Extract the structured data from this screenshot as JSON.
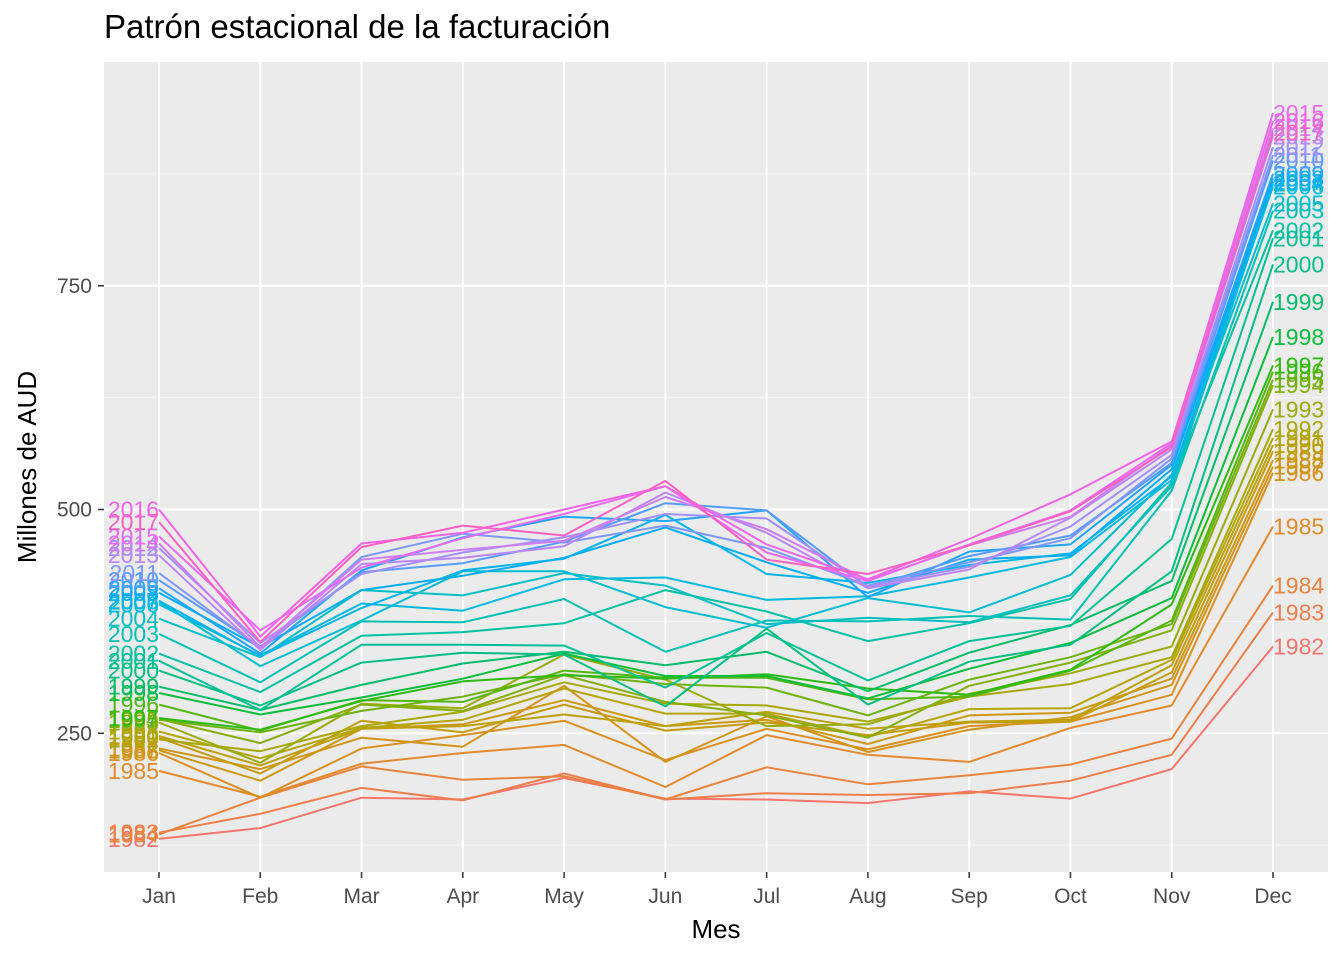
{
  "chart_data": {
    "type": "line",
    "title": "Patrón estacional de la facturación",
    "xlabel": "Mes",
    "ylabel": "Millones de AUD",
    "categories": [
      "Jan",
      "Feb",
      "Mar",
      "Apr",
      "May",
      "Jun",
      "Jul",
      "Aug",
      "Sep",
      "Oct",
      "Nov",
      "Dec"
    ],
    "y_ticks": [
      250,
      500,
      750
    ],
    "ylim": [
      95,
      1000
    ],
    "grid": true,
    "legend": "none",
    "end_labels": "year labels printed at the start (Jan) and end (Dec) of each line",
    "series": [
      {
        "name": "1982",
        "color": "#F8766D",
        "values": [
          132,
          144,
          178,
          176,
          200,
          177,
          176,
          172,
          185,
          177,
          210,
          347
        ]
      },
      {
        "name": "1983",
        "color": "#EE7E4B",
        "values": [
          139,
          160,
          189,
          175,
          205,
          176,
          183,
          181,
          183,
          197,
          226,
          385
        ]
      },
      {
        "name": "1984",
        "color": "#E9833E",
        "values": [
          137,
          178,
          213,
          198,
          202,
          176,
          212,
          193,
          203,
          215,
          244,
          415
        ]
      },
      {
        "name": "1985",
        "color": "#E28A2F",
        "values": [
          208,
          179,
          216,
          228,
          237,
          190,
          248,
          226,
          218,
          256,
          281,
          481
        ]
      },
      {
        "name": "1986",
        "color": "#DA9020",
        "values": [
          228,
          178,
          233,
          248,
          264,
          220,
          255,
          232,
          258,
          263,
          293,
          541
        ]
      },
      {
        "name": "1987",
        "color": "#D29418",
        "values": [
          233,
          210,
          245,
          235,
          303,
          218,
          269,
          229,
          254,
          268,
          304,
          548
        ]
      },
      {
        "name": "1988",
        "color": "#CC9810",
        "values": [
          231,
          197,
          255,
          260,
          287,
          258,
          265,
          238,
          270,
          273,
          311,
          555
        ]
      },
      {
        "name": "1989",
        "color": "#C49C0A",
        "values": [
          245,
          205,
          264,
          251,
          282,
          253,
          262,
          248,
          262,
          263,
          318,
          565
        ]
      },
      {
        "name": "1990",
        "color": "#BCA006",
        "values": [
          247,
          214,
          255,
          258,
          271,
          258,
          274,
          255,
          263,
          265,
          326,
          572
        ]
      },
      {
        "name": "1991",
        "color": "#B4A404",
        "values": [
          252,
          222,
          256,
          265,
          300,
          272,
          272,
          246,
          277,
          278,
          332,
          580
        ]
      },
      {
        "name": "1992",
        "color": "#A7A806",
        "values": [
          243,
          230,
          258,
          274,
          307,
          283,
          281,
          263,
          291,
          305,
          335,
          590
        ]
      },
      {
        "name": "1993",
        "color": "#98AB08",
        "values": [
          262,
          217,
          283,
          278,
          338,
          310,
          258,
          260,
          294,
          317,
          347,
          612
        ]
      },
      {
        "name": "1994",
        "color": "#86AE0A",
        "values": [
          266,
          239,
          282,
          275,
          315,
          285,
          270,
          245,
          303,
          329,
          365,
          639
        ]
      },
      {
        "name": "1995",
        "color": "#6FB20C",
        "values": [
          265,
          251,
          275,
          291,
          316,
          305,
          301,
          270,
          310,
          335,
          372,
          645
        ]
      },
      {
        "name": "1996",
        "color": "#54B60E",
        "values": [
          282,
          253,
          287,
          285,
          320,
          312,
          312,
          288,
          291,
          320,
          376,
          654
        ]
      },
      {
        "name": "1997",
        "color": "#2DBA10",
        "values": [
          267,
          254,
          286,
          308,
          315,
          311,
          316,
          300,
          293,
          321,
          394,
          661
        ]
      },
      {
        "name": "1998",
        "color": "#08BC3C",
        "values": [
          295,
          271,
          290,
          311,
          339,
          314,
          314,
          289,
          322,
          351,
          401,
          693
        ]
      },
      {
        "name": "1999",
        "color": "#00BC6A",
        "values": [
          302,
          276,
          304,
          328,
          341,
          326,
          341,
          297,
          340,
          371,
          420,
          732
        ]
      },
      {
        "name": "2000",
        "color": "#00BE82",
        "values": [
          320,
          281,
          329,
          340,
          338,
          280,
          367,
          282,
          330,
          349,
          431,
          774
        ]
      },
      {
        "name": "2001",
        "color": "#00C093",
        "values": [
          331,
          276,
          349,
          349,
          348,
          301,
          362,
          309,
          353,
          370,
          467,
          803
        ]
      },
      {
        "name": "2002",
        "color": "#00C0A3",
        "values": [
          339,
          296,
          359,
          363,
          373,
          410,
          386,
          353,
          373,
          400,
          530,
          812
        ]
      },
      {
        "name": "2003",
        "color": "#00BFB3",
        "values": [
          361,
          307,
          375,
          374,
          400,
          341,
          376,
          375,
          381,
          377,
          521,
          834
        ]
      },
      {
        "name": "2004",
        "color": "#00BEC2",
        "values": [
          378,
          335,
          410,
          404,
          429,
          415,
          372,
          379,
          374,
          404,
          526,
          864
        ]
      },
      {
        "name": "2005",
        "color": "#00BCD0",
        "values": [
          397,
          325,
          376,
          431,
          431,
          391,
          368,
          401,
          385,
          427,
          539,
          842
        ]
      },
      {
        "name": "2006",
        "color": "#00B9DE",
        "values": [
          394,
          337,
          395,
          387,
          422,
          424,
          399,
          403,
          424,
          447,
          533,
          861
        ]
      },
      {
        "name": "2007",
        "color": "#00B4EA",
        "values": [
          398,
          336,
          390,
          432,
          445,
          494,
          428,
          418,
          438,
          451,
          537,
          866
        ]
      },
      {
        "name": "2008",
        "color": "#00ADF4",
        "values": [
          407,
          346,
          410,
          426,
          446,
          480,
          441,
          407,
          444,
          449,
          545,
          870
        ]
      },
      {
        "name": "2009",
        "color": "#1FA5FA",
        "values": [
          412,
          339,
          432,
          469,
          492,
          487,
          499,
          402,
          453,
          461,
          550,
          875
        ]
      },
      {
        "name": "2010",
        "color": "#579DFF",
        "values": [
          421,
          347,
          430,
          440,
          464,
          507,
          499,
          413,
          448,
          471,
          552,
          890
        ]
      },
      {
        "name": "2011",
        "color": "#7F97FF",
        "values": [
          429,
          345,
          447,
          473,
          463,
          482,
          457,
          415,
          441,
          468,
          557,
          896
        ]
      },
      {
        "name": "2012",
        "color": "#A48FFF",
        "values": [
          457,
          351,
          428,
          452,
          469,
          495,
          490,
          414,
          436,
          481,
          561,
          905
        ]
      },
      {
        "name": "2013",
        "color": "#BA86F8",
        "values": [
          449,
          343,
          439,
          446,
          459,
          519,
          474,
          412,
          433,
          491,
          567,
          917
        ]
      },
      {
        "name": "2014",
        "color": "#CD7FF2",
        "values": [
          462,
          346,
          444,
          455,
          465,
          514,
          478,
          421,
          460,
          492,
          572,
          926
        ]
      },
      {
        "name": "2015",
        "color": "#E76BF3",
        "values": [
          470,
          365,
          435,
          468,
          495,
          526,
          452,
          420,
          461,
          499,
          574,
          943
        ]
      },
      {
        "name": "2016",
        "color": "#F365E6",
        "values": [
          500,
          358,
          462,
          474,
          500,
          526,
          461,
          422,
          467,
          517,
          576,
          934
        ]
      },
      {
        "name": "2017",
        "color": "#FF61C3",
        "values": [
          486,
          352,
          458,
          482,
          471,
          532,
          444,
          428,
          460,
          498,
          570,
          921
        ]
      }
    ]
  }
}
